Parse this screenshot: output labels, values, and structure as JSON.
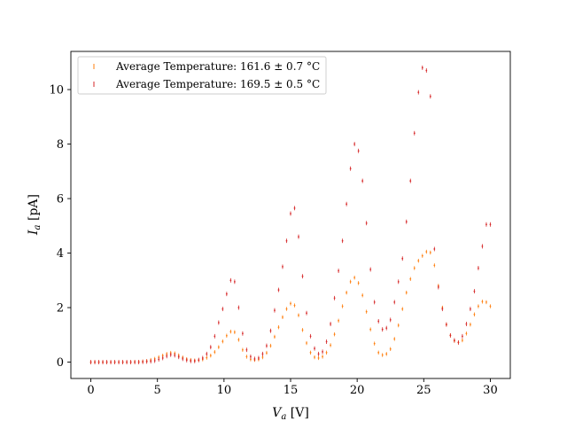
{
  "chart_data": {
    "type": "scatter",
    "xlabel": "V_a [V]",
    "ylabel": "I_a [pA]",
    "xlim": [
      -1.5,
      31.5
    ],
    "ylim": [
      -0.6,
      11.4
    ],
    "xticks": [
      0,
      5,
      10,
      15,
      20,
      25,
      30
    ],
    "yticks": [
      0,
      2,
      4,
      6,
      8,
      10
    ],
    "grid": false,
    "legend_placement": "upper-left",
    "series": [
      {
        "name": "Average Temperature: 161.6 ± 0.7 °C",
        "color": "#ff7f0e",
        "x": [
          0,
          0.3,
          0.6,
          0.9,
          1.2,
          1.5,
          1.8,
          2.1,
          2.4,
          2.7,
          3.0,
          3.3,
          3.6,
          3.9,
          4.2,
          4.5,
          4.8,
          5.1,
          5.4,
          5.7,
          6.0,
          6.3,
          6.6,
          6.9,
          7.2,
          7.5,
          7.8,
          8.1,
          8.4,
          8.7,
          9.0,
          9.3,
          9.6,
          9.9,
          10.2,
          10.5,
          10.8,
          11.1,
          11.4,
          11.7,
          12.0,
          12.3,
          12.6,
          12.9,
          13.2,
          13.5,
          13.8,
          14.1,
          14.4,
          14.7,
          15.0,
          15.3,
          15.6,
          15.9,
          16.2,
          16.5,
          16.8,
          17.1,
          17.4,
          17.7,
          18.0,
          18.3,
          18.6,
          18.9,
          19.2,
          19.5,
          19.8,
          20.1,
          20.4,
          20.7,
          21.0,
          21.3,
          21.6,
          21.9,
          22.2,
          22.5,
          22.8,
          23.1,
          23.4,
          23.7,
          24.0,
          24.3,
          24.6,
          24.9,
          25.2,
          25.5,
          25.8,
          26.1,
          26.4,
          26.7,
          27.0,
          27.3,
          27.6,
          27.9,
          28.2,
          28.5,
          28.8,
          29.1,
          29.4,
          29.7,
          30.0
        ],
        "y": [
          0,
          0,
          0,
          0,
          0,
          0,
          0,
          0,
          0,
          0,
          0,
          0.01,
          0.01,
          0.02,
          0.04,
          0.08,
          0.12,
          0.18,
          0.24,
          0.3,
          0.34,
          0.32,
          0.25,
          0.17,
          0.11,
          0.08,
          0.06,
          0.07,
          0.1,
          0.16,
          0.24,
          0.37,
          0.55,
          0.76,
          0.97,
          1.12,
          1.1,
          0.82,
          0.45,
          0.2,
          0.1,
          0.08,
          0.1,
          0.18,
          0.34,
          0.6,
          0.93,
          1.28,
          1.65,
          1.95,
          2.15,
          2.08,
          1.72,
          1.18,
          0.7,
          0.35,
          0.18,
          0.15,
          0.2,
          0.35,
          0.62,
          1.02,
          1.52,
          2.05,
          2.55,
          2.95,
          3.1,
          2.9,
          2.45,
          1.85,
          1.2,
          0.68,
          0.35,
          0.26,
          0.3,
          0.48,
          0.85,
          1.35,
          1.95,
          2.55,
          3.05,
          3.45,
          3.72,
          3.9,
          4.05,
          4.02,
          3.55,
          2.8,
          2.0,
          1.38,
          0.98,
          0.78,
          0.72,
          0.8,
          1.05,
          1.38,
          1.75,
          2.05,
          2.22,
          2.2,
          2.05
        ],
        "error": 0.06
      },
      {
        "name": "Average Temperature: 169.5 ± 0.5 °C",
        "color": "#d62728",
        "x": [
          0,
          0.3,
          0.6,
          0.9,
          1.2,
          1.5,
          1.8,
          2.1,
          2.4,
          2.7,
          3.0,
          3.3,
          3.6,
          3.9,
          4.2,
          4.5,
          4.8,
          5.1,
          5.4,
          5.7,
          6.0,
          6.3,
          6.6,
          6.9,
          7.2,
          7.5,
          7.8,
          8.1,
          8.4,
          8.7,
          9.0,
          9.3,
          9.6,
          9.9,
          10.2,
          10.5,
          10.8,
          11.1,
          11.4,
          11.7,
          12.0,
          12.3,
          12.6,
          12.9,
          13.2,
          13.5,
          13.8,
          14.1,
          14.4,
          14.7,
          15.0,
          15.3,
          15.6,
          15.9,
          16.2,
          16.5,
          16.8,
          17.1,
          17.4,
          17.7,
          18.0,
          18.3,
          18.6,
          18.9,
          19.2,
          19.5,
          19.8,
          20.1,
          20.4,
          20.7,
          21.0,
          21.3,
          21.6,
          21.9,
          22.2,
          22.5,
          22.8,
          23.1,
          23.4,
          23.7,
          24.0,
          24.3,
          24.6,
          24.9,
          25.2,
          25.5,
          25.8,
          26.1,
          26.4,
          26.7,
          27.0,
          27.3,
          27.6,
          27.9,
          28.2,
          28.5,
          28.8,
          29.1,
          29.4,
          29.7,
          30.0
        ],
        "y": [
          0,
          0,
          0,
          0,
          0,
          0,
          0,
          0,
          0,
          0,
          0,
          0,
          0,
          0.01,
          0.02,
          0.03,
          0.05,
          0.1,
          0.15,
          0.22,
          0.27,
          0.25,
          0.19,
          0.12,
          0.07,
          0.04,
          0.04,
          0.08,
          0.15,
          0.3,
          0.55,
          0.95,
          1.45,
          1.95,
          2.5,
          3.0,
          2.95,
          2.0,
          1.05,
          0.45,
          0.2,
          0.12,
          0.15,
          0.3,
          0.6,
          1.15,
          1.9,
          2.65,
          3.5,
          4.45,
          5.45,
          5.65,
          4.6,
          3.15,
          1.8,
          0.95,
          0.5,
          0.3,
          0.38,
          0.75,
          1.4,
          2.35,
          3.35,
          4.45,
          5.8,
          7.1,
          8.0,
          7.75,
          6.65,
          5.1,
          3.4,
          2.2,
          1.5,
          1.2,
          1.25,
          1.55,
          2.2,
          2.95,
          3.8,
          5.15,
          6.65,
          8.4,
          9.9,
          10.8,
          10.7,
          9.75,
          4.15,
          2.75,
          1.95,
          1.38,
          0.98,
          0.8,
          0.72,
          0.95,
          1.4,
          1.95,
          2.6,
          3.45,
          4.25,
          5.05,
          5.05
        ],
        "error": 0.08
      }
    ]
  }
}
